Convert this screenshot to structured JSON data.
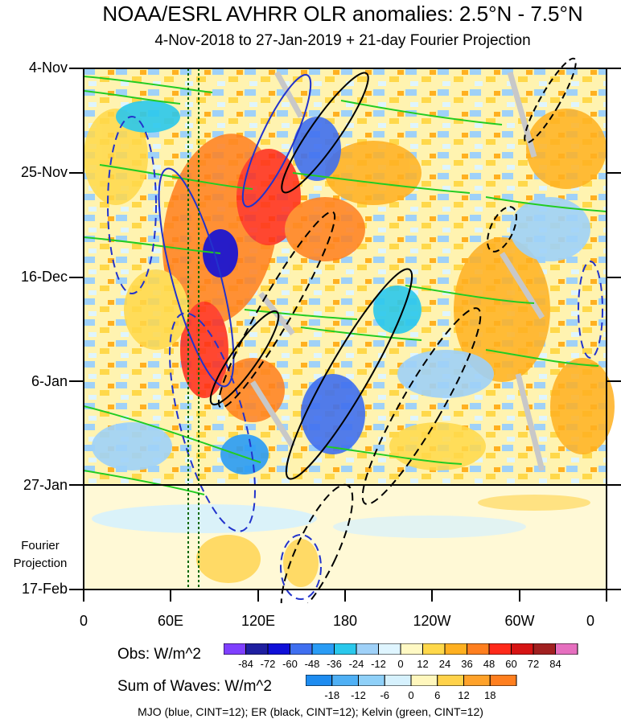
{
  "chart_data": {
    "type": "heatmap",
    "title": "NOAA/ESRL AVHRR OLR anomalies: 2.5°N - 7.5°N",
    "subtitle": "4-Nov-2018 to 27-Jan-2019 + 21-day Fourier Projection",
    "y_ticks": [
      "4-Nov",
      "25-Nov",
      "16-Dec",
      "6-Jan",
      "27-Jan",
      "17-Feb"
    ],
    "x_ticks": [
      "0",
      "60E",
      "120E",
      "180",
      "120W",
      "60W",
      "0"
    ],
    "projection_label_line1": "Fourier",
    "projection_label_line2": "Projection",
    "obs_colorbar": {
      "title": "Obs: W/m^2",
      "ticks": [
        "-84",
        "-72",
        "-60",
        "-48",
        "-36",
        "-24",
        "-12",
        "0",
        "12",
        "24",
        "36",
        "48",
        "60",
        "72",
        "84"
      ],
      "colors": [
        "#7f3fff",
        "#1f1fa0",
        "#1010d8",
        "#3f6ff0",
        "#2a9cf5",
        "#2ac8ec",
        "#9fd1f8",
        "#dff5ff",
        "#fff9c4",
        "#ffd84a",
        "#ffb020",
        "#ff7f1f",
        "#ff2a1a",
        "#d61414",
        "#a12020",
        "#e66fbf"
      ]
    },
    "waves_colorbar": {
      "title": "Sum of Waves: W/m^2",
      "ticks": [
        "-18",
        "-12",
        "-6",
        "0",
        "6",
        "12",
        "18"
      ],
      "colors": [
        "#1e8cf0",
        "#4fb0f5",
        "#8fd0f8",
        "#d6f1fd",
        "#fff7bd",
        "#ffd24a",
        "#ffa22a",
        "#ff7f1f"
      ]
    },
    "footer": "MJO (blue, CINT=12); ER (black, CINT=12); Kelvin (green, CINT=12)"
  }
}
